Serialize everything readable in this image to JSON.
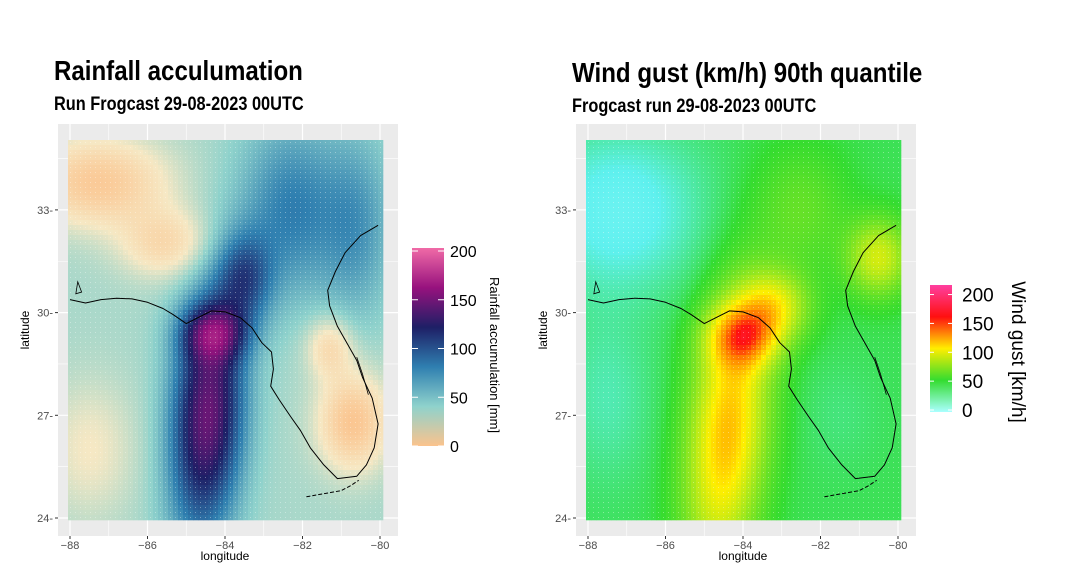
{
  "maps": [
    {
      "title": "Rainfall acculumation",
      "subtitle": "Run Frogcast 29-08-2023  00UTC",
      "xlabel": "longitude",
      "ylabel": "latitude",
      "x_ticks": [
        "-88",
        "-86",
        "-84",
        "-82",
        "-80"
      ],
      "y_ticks": [
        "24",
        "27",
        "30",
        "33"
      ],
      "legend": {
        "title": "Rainfall accumulation [mm]",
        "labels": [
          "200",
          "150",
          "100",
          "50",
          "0"
        ],
        "values": [
          200,
          150,
          100,
          50,
          0
        ],
        "colors": [
          "#f06aa7",
          "#97127e",
          "#1e1f66",
          "#2f7fb0",
          "#8fd2cc",
          "#fbc38d"
        ]
      },
      "field": "rainfall"
    },
    {
      "title": "Wind gust (km/h) 90th quantile",
      "subtitle": "Frogcast run 29-08-2023 00UTC",
      "xlabel": "longitude",
      "ylabel": "latitude",
      "x_ticks": [
        "-88",
        "-86",
        "-84",
        "-82",
        "-80"
      ],
      "y_ticks": [
        "24",
        "27",
        "30",
        "33"
      ],
      "legend": {
        "title": "Wind gust [km/h]",
        "labels": [
          "200",
          "150",
          "100",
          "50",
          "0"
        ],
        "values": [
          200,
          150,
          100,
          50,
          0
        ],
        "colors": [
          "#ff3fa0",
          "#ff1010",
          "#ffee00",
          "#34dc30",
          "#aaffff"
        ]
      },
      "field": "wind"
    }
  ],
  "chart_data": [
    {
      "type": "heatmap",
      "title": "Rainfall acculumation",
      "subtitle": "Run Frogcast 29-08-2023  00UTC",
      "xlabel": "longitude",
      "ylabel": "latitude",
      "xlim": [
        -88,
        -80
      ],
      "ylim": [
        24,
        35
      ],
      "x_ticks": [
        -88,
        -86,
        -84,
        -82,
        -80
      ],
      "y_ticks": [
        24,
        27,
        30,
        33
      ],
      "legend_title": "Rainfall accumulation [mm]",
      "value_range": [
        0,
        200
      ],
      "max_region": {
        "lon": -84.5,
        "lat": 29.3,
        "value": 200
      }
    },
    {
      "type": "heatmap",
      "title": "Wind gust (km/h) 90th quantile",
      "subtitle": "Frogcast run 29-08-2023 00UTC",
      "xlabel": "longitude",
      "ylabel": "latitude",
      "xlim": [
        -88,
        -80
      ],
      "ylim": [
        24,
        35
      ],
      "x_ticks": [
        -88,
        -86,
        -84,
        -82,
        -80
      ],
      "y_ticks": [
        24,
        27,
        30,
        33
      ],
      "legend_title": "Wind gust [km/h]",
      "value_range": [
        0,
        220
      ],
      "max_region": {
        "lon": -84.2,
        "lat": 29.2,
        "value": 200
      }
    }
  ]
}
